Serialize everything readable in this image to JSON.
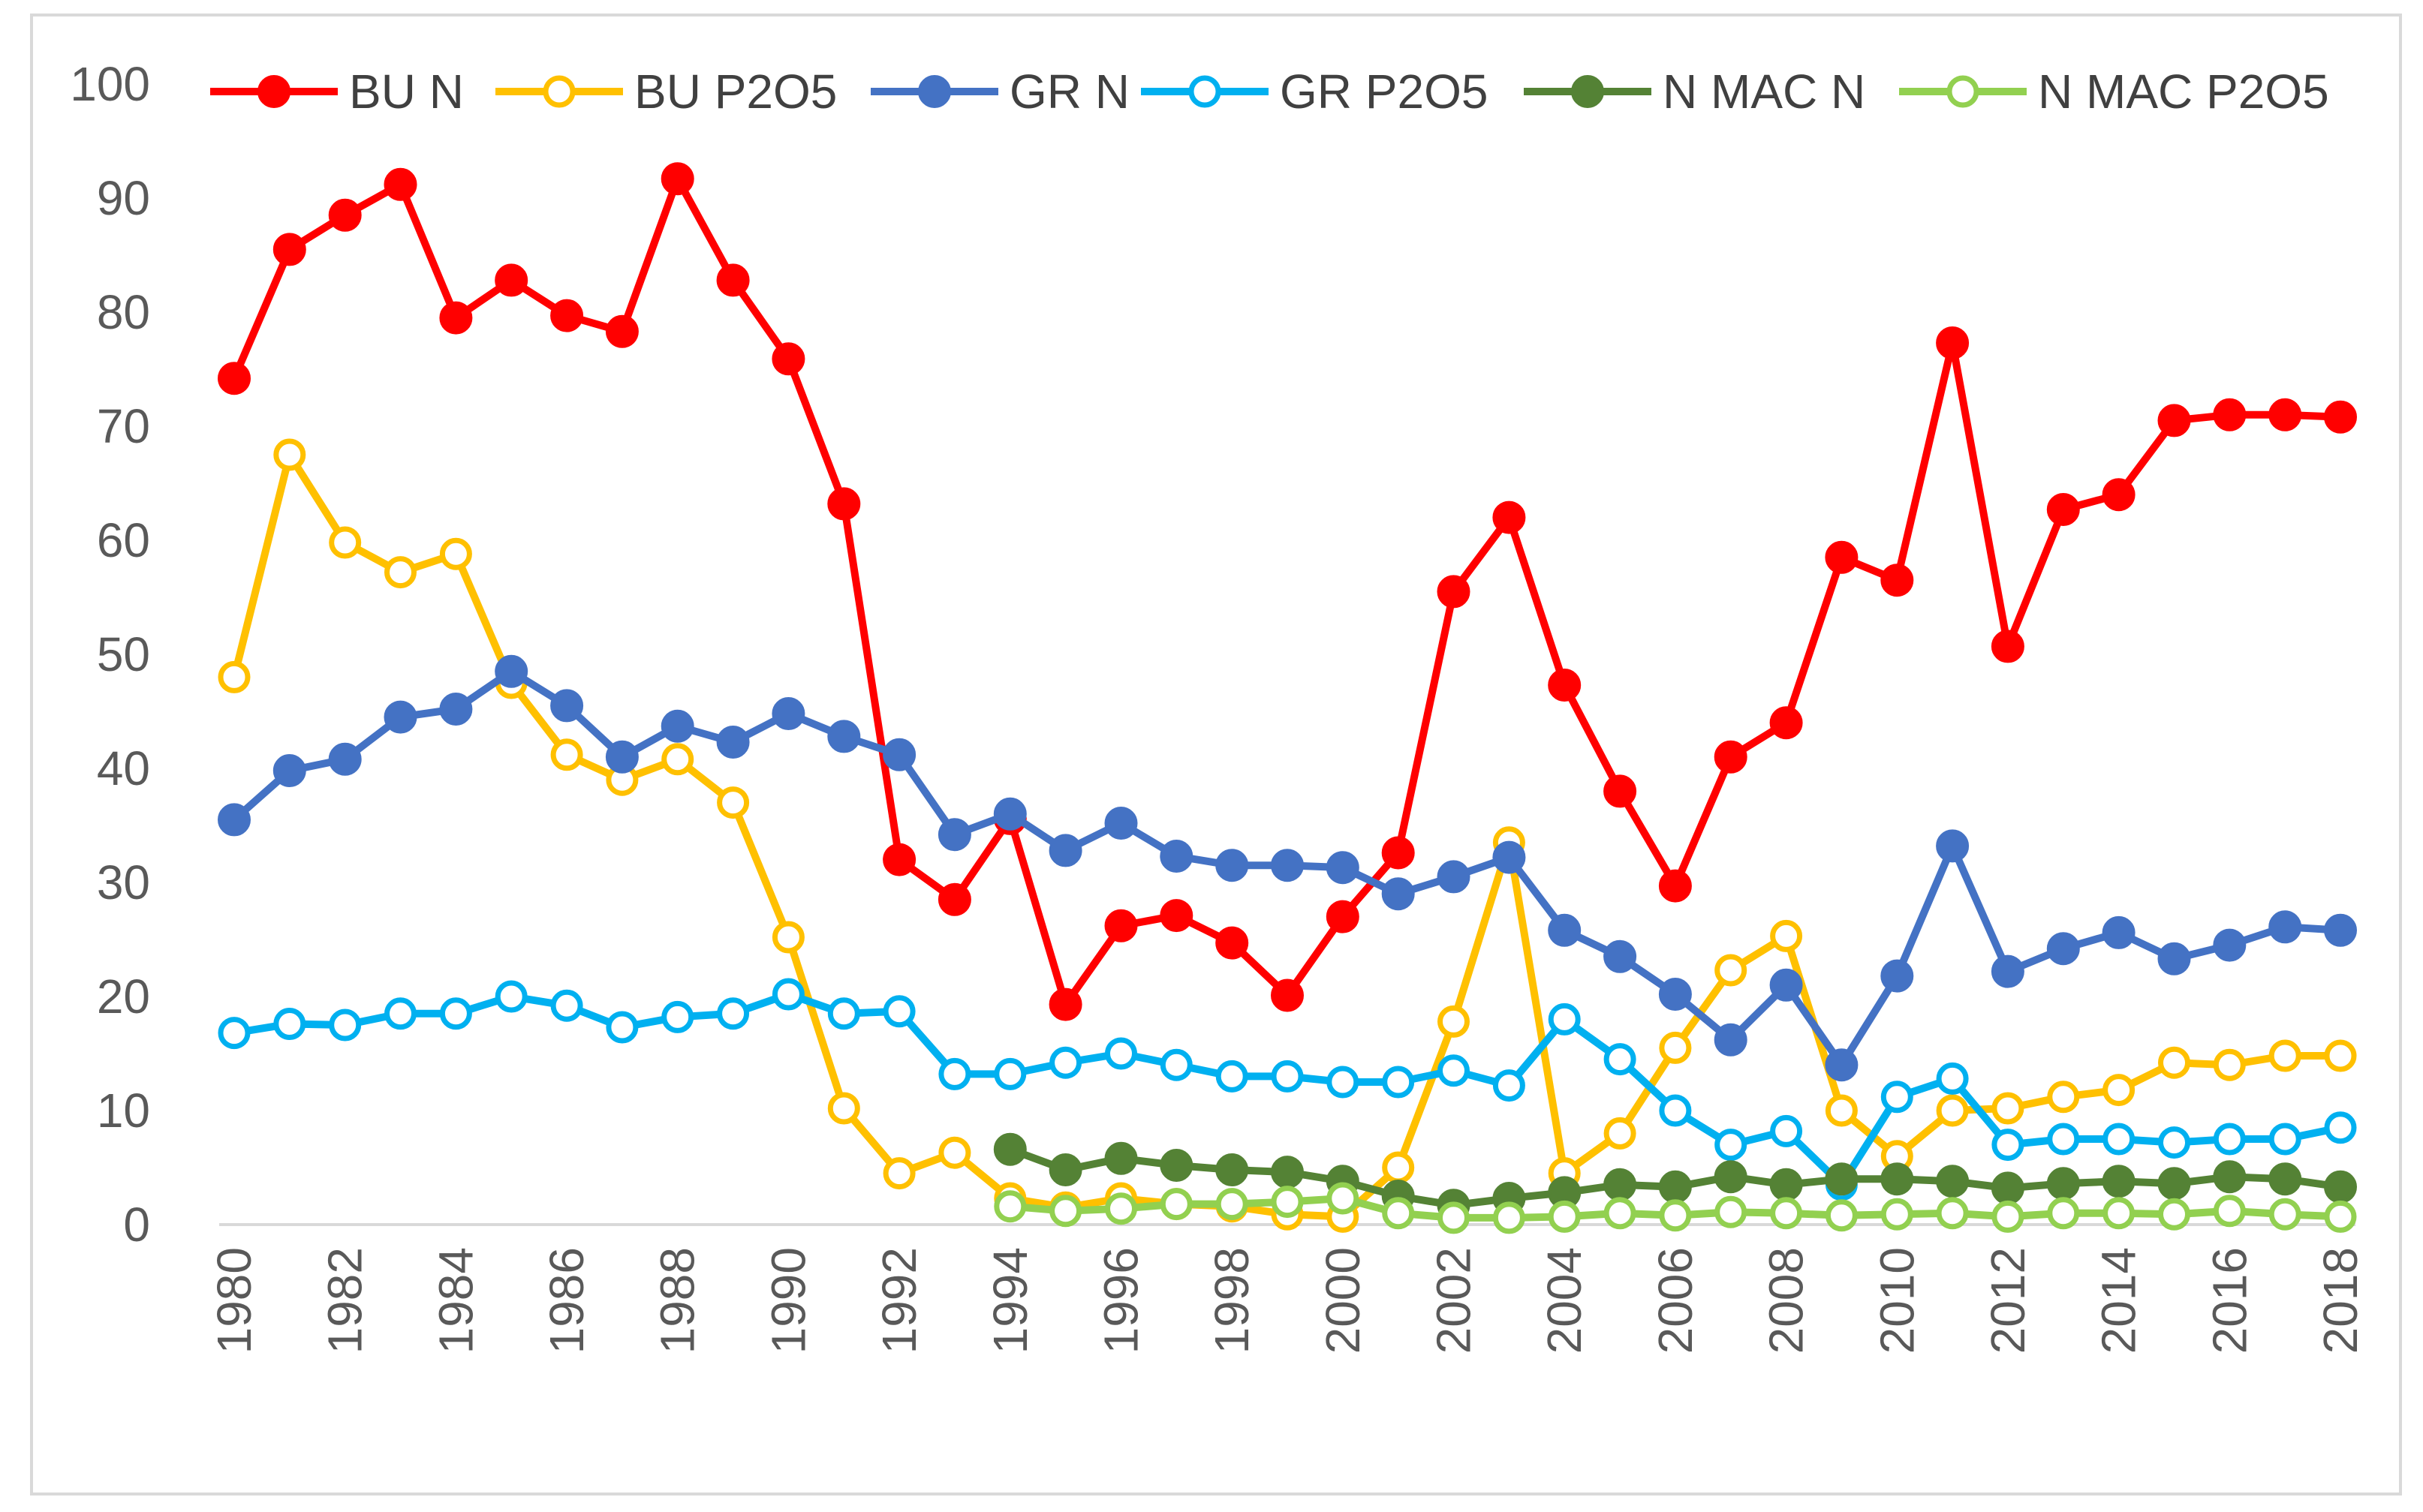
{
  "chart_data": {
    "type": "line",
    "title": "",
    "xlabel": "",
    "ylabel": "",
    "ylim": [
      0,
      100
    ],
    "yticks": [
      0,
      10,
      20,
      30,
      40,
      50,
      60,
      70,
      80,
      90,
      100
    ],
    "x": [
      1980,
      1981,
      1982,
      1983,
      1984,
      1985,
      1986,
      1987,
      1988,
      1989,
      1990,
      1991,
      1992,
      1993,
      1994,
      1995,
      1996,
      1997,
      1998,
      1999,
      2000,
      2001,
      2002,
      2003,
      2004,
      2005,
      2006,
      2007,
      2008,
      2009,
      2010,
      2011,
      2012,
      2013,
      2014,
      2015,
      2016,
      2017,
      2018
    ],
    "xtick_labels": [
      "1980",
      "1982",
      "1984",
      "1986",
      "1988",
      "1990",
      "1992",
      "1994",
      "1996",
      "1998",
      "2000",
      "2002",
      "2004",
      "2006",
      "2008",
      "2010",
      "2012",
      "2014",
      "2016",
      "2018"
    ],
    "grid": false,
    "legend_position": "top",
    "series": [
      {
        "name": "BU N",
        "color": "#ff0000",
        "marker": "filled",
        "values": [
          74.2,
          85.5,
          88.5,
          91.2,
          79.5,
          82.8,
          79.7,
          78.3,
          91.7,
          82.8,
          75.9,
          63.2,
          32.0,
          28.5,
          35.6,
          19.3,
          26.2,
          27.1,
          24.7,
          20.1,
          27.0,
          32.6,
          55.5,
          62.0,
          47.3,
          38.0,
          29.7,
          41.0,
          44.0,
          58.5,
          56.5,
          77.3,
          50.7,
          62.7,
          64.0,
          70.5,
          71.0,
          71.0,
          70.8
        ]
      },
      {
        "name": "BU P2O5",
        "color": "#ffc000",
        "marker": "open",
        "values": [
          48.0,
          67.5,
          59.8,
          57.2,
          58.8,
          47.5,
          41.2,
          39.0,
          40.8,
          37.0,
          25.2,
          10.2,
          4.5,
          6.3,
          2.3,
          1.5,
          2.3,
          1.8,
          1.6,
          0.9,
          0.7,
          5.0,
          17.8,
          33.5,
          4.5,
          8.0,
          15.5,
          22.3,
          25.3,
          10.0,
          6.0,
          10.0,
          10.2,
          11.2,
          11.8,
          14.2,
          14.0,
          14.8,
          14.8
        ]
      },
      {
        "name": "GR N",
        "color": "#4472c4",
        "marker": "filled",
        "values": [
          35.5,
          39.8,
          40.8,
          44.5,
          45.2,
          48.5,
          45.5,
          41.0,
          43.7,
          42.3,
          44.8,
          42.8,
          41.2,
          34.2,
          36.0,
          32.8,
          35.2,
          32.3,
          31.5,
          31.5,
          31.3,
          29.0,
          30.5,
          32.2,
          25.8,
          23.5,
          20.2,
          16.2,
          21.0,
          14.0,
          21.8,
          33.2,
          22.2,
          24.2,
          25.6,
          23.3,
          24.5,
          26.1,
          25.8
        ]
      },
      {
        "name": "GR P2O5",
        "color": "#00b0f0",
        "marker": "open",
        "values": [
          16.8,
          17.6,
          17.5,
          18.5,
          18.5,
          20.0,
          19.2,
          17.3,
          18.2,
          18.5,
          20.2,
          18.5,
          18.7,
          13.2,
          13.2,
          14.2,
          15.0,
          14.0,
          13.0,
          13.0,
          12.5,
          12.5,
          13.5,
          12.2,
          18.0,
          14.5,
          10.0,
          7.0,
          8.2,
          3.5,
          11.2,
          12.8,
          7.0,
          7.5,
          7.5,
          7.2,
          7.5,
          7.5,
          8.5
        ]
      },
      {
        "name": "N MAC N",
        "color": "#548235",
        "marker": "filled",
        "values": [
          null,
          null,
          null,
          null,
          null,
          null,
          null,
          null,
          null,
          null,
          null,
          null,
          null,
          null,
          6.6,
          4.8,
          5.8,
          5.2,
          4.8,
          4.6,
          3.8,
          2.5,
          1.7,
          2.3,
          2.8,
          3.5,
          3.3,
          4.2,
          3.5,
          4.0,
          4.0,
          3.8,
          3.2,
          3.6,
          3.8,
          3.6,
          4.2,
          4.0,
          3.3
        ]
      },
      {
        "name": "N MAC P2O5",
        "color": "#92d050",
        "marker": "open",
        "values": [
          null,
          null,
          null,
          null,
          null,
          null,
          null,
          null,
          null,
          null,
          null,
          null,
          null,
          null,
          1.6,
          1.2,
          1.4,
          1.8,
          1.8,
          2.0,
          2.3,
          1.0,
          0.6,
          0.6,
          0.7,
          1.0,
          0.8,
          1.1,
          1.0,
          0.8,
          0.9,
          1.0,
          0.7,
          1.0,
          1.0,
          0.9,
          1.2,
          0.9,
          0.7
        ]
      }
    ]
  }
}
